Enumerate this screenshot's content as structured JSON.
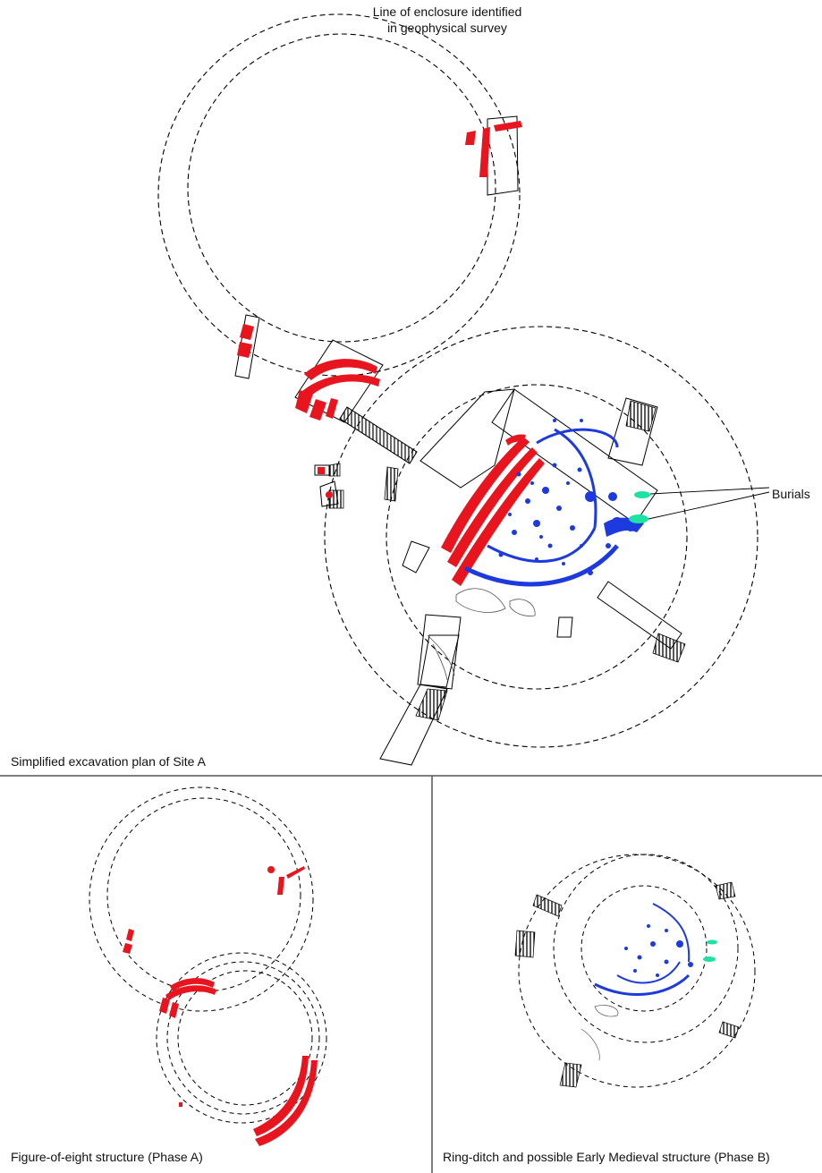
{
  "labels": {
    "survey_line_1": "Line of enclosure identified",
    "survey_line_2": "in geophysical survey",
    "burials": "Burials"
  },
  "captions": {
    "site_a": "Simplified excavation plan of Site A",
    "phase_a": "Figure-of-eight structure (Phase A)",
    "phase_b": "Ring-ditch and possible Early Medieval structure (Phase B)"
  },
  "colors": {
    "phase_a_ditch": "#e8141e",
    "phase_b_features": "#1c3ae0",
    "burials": "#1ce3a0",
    "outline": "#000000",
    "divider": "#555555"
  }
}
